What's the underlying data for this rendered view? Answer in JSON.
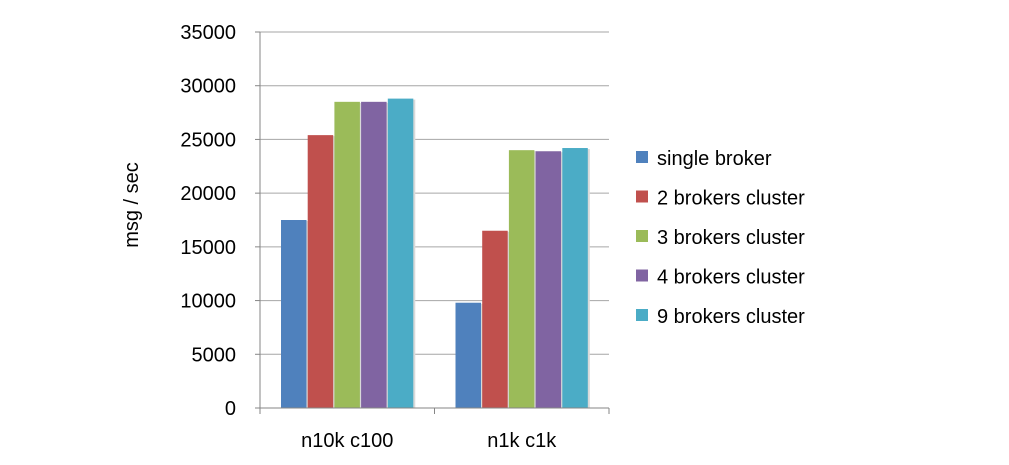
{
  "chart_data": {
    "type": "bar",
    "categories": [
      "n10k c100",
      "n1k c1k"
    ],
    "series": [
      {
        "name": "single broker",
        "values": [
          17500,
          9800
        ],
        "color": "#4F81BD"
      },
      {
        "name": "2 brokers cluster",
        "values": [
          25400,
          16500
        ],
        "color": "#C0504D"
      },
      {
        "name": "3 brokers cluster",
        "values": [
          28500,
          24000
        ],
        "color": "#9BBB59"
      },
      {
        "name": "4 brokers cluster",
        "values": [
          28500,
          23900
        ],
        "color": "#8064A2"
      },
      {
        "name": "9 brokers cluster",
        "values": [
          28800,
          24200
        ],
        "color": "#4BACC6"
      }
    ],
    "ylabel": "msg / sec",
    "xlabel": "",
    "ylim": [
      0,
      35000
    ],
    "yticks": [
      0,
      5000,
      10000,
      15000,
      20000,
      25000,
      30000,
      35000
    ],
    "grid": true,
    "legend_position": "right"
  }
}
